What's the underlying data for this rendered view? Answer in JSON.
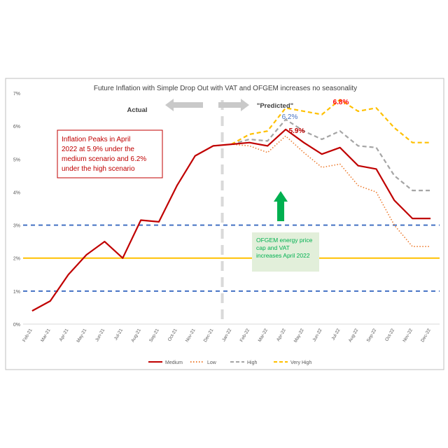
{
  "chart_data": {
    "type": "line",
    "title": "Future Inflation with Simple Drop Out with VAT and OFGEM  increases no seasonality",
    "categories": [
      "Feb-21",
      "Mar-21",
      "Apr-21",
      "May-21",
      "Jun-21",
      "Jul-21",
      "Aug-21",
      "Sep-21",
      "Oct-21",
      "Nov-21",
      "Dec-21",
      "Jan-22",
      "Feb-22",
      "Mar-22",
      "Apr-22",
      "May-22",
      "Jun-22",
      "Jul-22",
      "Aug-22",
      "Sep-22",
      "Oct-22",
      "Nov-22",
      "Dec-22"
    ],
    "y_ticks": [
      "0%",
      "1%",
      "2%",
      "3%",
      "4%",
      "5%",
      "6%",
      "7%"
    ],
    "ylim": [
      0,
      7
    ],
    "series": [
      {
        "name": "Medium",
        "color": "#c00000",
        "style": "solid",
        "values": [
          0.4,
          0.7,
          1.5,
          2.1,
          2.5,
          2.0,
          3.15,
          3.1,
          4.2,
          5.1,
          5.4,
          5.45,
          5.5,
          5.4,
          5.9,
          5.5,
          5.15,
          5.35,
          4.8,
          4.7,
          3.75,
          3.2,
          3.2
        ]
      },
      {
        "name": "Low",
        "color": "#ed7d31",
        "style": "dotted",
        "values": [
          null,
          null,
          null,
          null,
          null,
          null,
          3.15,
          3.1,
          4.2,
          5.1,
          5.4,
          5.45,
          5.4,
          5.2,
          5.7,
          5.2,
          4.75,
          4.85,
          4.2,
          4.0,
          3.0,
          2.35,
          2.35
        ]
      },
      {
        "name": "High",
        "color": "#a5a5a5",
        "style": "dashed",
        "values": [
          null,
          null,
          null,
          null,
          null,
          null,
          null,
          null,
          null,
          null,
          null,
          5.45,
          5.6,
          5.55,
          6.2,
          5.85,
          5.6,
          5.85,
          5.4,
          5.35,
          4.5,
          4.05,
          4.05
        ]
      },
      {
        "name": "Very High",
        "color": "#ffc000",
        "style": "dashed",
        "values": [
          null,
          null,
          null,
          null,
          null,
          null,
          null,
          null,
          null,
          null,
          null,
          5.45,
          5.75,
          5.85,
          6.55,
          6.45,
          6.35,
          6.8,
          6.45,
          6.55,
          5.95,
          5.5,
          5.5
        ]
      }
    ],
    "reference_lines": [
      {
        "value": 3.0,
        "color": "#4472c4",
        "style": "dashed"
      },
      {
        "value": 2.0,
        "color": "#ffc000",
        "style": "solid"
      },
      {
        "value": 1.0,
        "color": "#4472c4",
        "style": "dashed"
      }
    ],
    "divider_between": [
      "Dec-21",
      "Jan-22"
    ],
    "labels": {
      "actual": "Actual",
      "predicted": "\"Predicted\"",
      "peak_high": "6.2%",
      "peak_medium": "5.9%",
      "peak_veryhigh": "6.8%",
      "inflation_box": "Inflation Peaks in April 2022 at 5.9% under the medium scenario and 6.2% under the high scenario",
      "ofgem_box": "OFGEM energy price cap and VAT increases April 2022"
    },
    "colors": {
      "arrow_gray": "#c9c9c9",
      "arrow_green": "#00b050",
      "box_red": "#c00000",
      "box_green_fill": "#e2efda",
      "ofgem_text": "#00b050",
      "divider": "#d9d9d9"
    },
    "grid": false,
    "legend_position": "bottom"
  }
}
